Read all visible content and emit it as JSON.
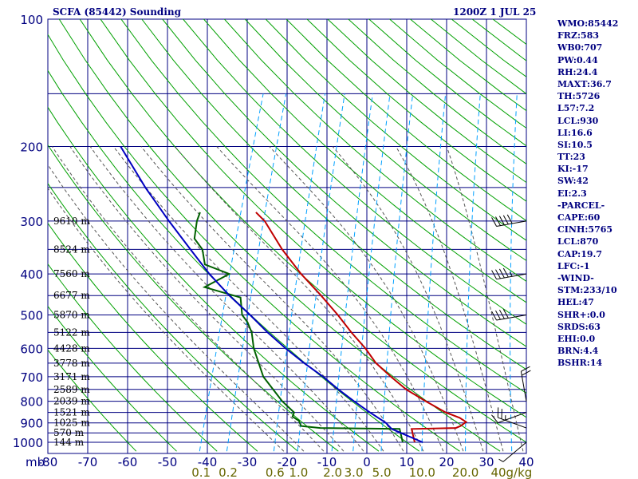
{
  "header": {
    "station_title": "SCFA (85442) Sounding",
    "valid_time": "1200Z  1 JUL 25"
  },
  "indices": [
    "WMO:85442",
    "FRZ:583",
    "WB0:707",
    "PW:0.44",
    "RH:24.4",
    "MAXT:36.7",
    "TH:5726",
    "L57:7.2",
    "LCL:930",
    "LI:16.6",
    "SI:10.5",
    "TT:23",
    "KI:-17",
    "SW:42",
    "EI:2.3",
    "-PARCEL-",
    "CAPE:60",
    "CINH:5765",
    "LCL:870",
    "CAP:19.7",
    "LFC:-1",
    "-WIND-",
    "STM:233/10",
    "HEL:47",
    "SHR+:0.0",
    "SRDS:63",
    "EHI:0.0",
    "BRN:4.4",
    "BSHR:14"
  ],
  "colors": {
    "grid": "#000080",
    "labels": "#000080",
    "dry_adiabats": "#00a000",
    "moist_adiabats": "#555555",
    "mixing_ratio": "#00a0ff",
    "temperature": "#c00000",
    "dewpoint": "#006000",
    "parcel": "#0000c0",
    "mixing_labels": "#666600",
    "wind": "#000000"
  },
  "chart_data": {
    "type": "skew-t log-p",
    "ylabel": "mb",
    "pressure_ticks": [
      "100",
      "200",
      "300",
      "400",
      "500",
      "600",
      "700",
      "800",
      "900",
      "1000"
    ],
    "pressure_values": [
      100,
      200,
      300,
      400,
      500,
      600,
      700,
      800,
      900,
      1000
    ],
    "temperature_ticks": [
      "-80",
      "-70",
      "-60",
      "-50",
      "-40",
      "-30",
      "-20",
      "-10",
      "0",
      "10",
      "20",
      "30",
      "40"
    ],
    "temperature_values": [
      -80,
      -70,
      -60,
      -50,
      -40,
      -30,
      -20,
      -10,
      0,
      10,
      20,
      30,
      40
    ],
    "mixing_ratio_labels": [
      "0.1",
      "0.2",
      "0.6",
      "1.0",
      "2.0",
      "3.0",
      "5.0",
      "10.0",
      "20.0",
      "40g/kg"
    ],
    "mixing_ratio_values": [
      0.1,
      0.2,
      0.6,
      1.0,
      2.0,
      3.0,
      5.0,
      10.0,
      20.0,
      40.0
    ],
    "height_labels": [
      {
        "p": 300,
        "label": "9610 m"
      },
      {
        "p": 350,
        "label": "8524 m"
      },
      {
        "p": 400,
        "label": "7560 m"
      },
      {
        "p": 450,
        "label": "6677 m"
      },
      {
        "p": 500,
        "label": "5870 m"
      },
      {
        "p": 550,
        "label": "5122 m"
      },
      {
        "p": 600,
        "label": "4428 m"
      },
      {
        "p": 650,
        "label": "3778 m"
      },
      {
        "p": 700,
        "label": "3171 m"
      },
      {
        "p": 750,
        "label": "2589 m"
      },
      {
        "p": 800,
        "label": "2039 m"
      },
      {
        "p": 850,
        "label": "1521 m"
      },
      {
        "p": 900,
        "label": "1025 m"
      },
      {
        "p": 950,
        "label": "570 m"
      },
      {
        "p": 1000,
        "label": "144 m"
      }
    ],
    "series": [
      {
        "key": "temperature",
        "points": [
          [
            1000,
            12
          ],
          [
            930,
            10
          ],
          [
            925,
            21
          ],
          [
            915,
            22
          ],
          [
            895,
            23
          ],
          [
            875,
            21
          ],
          [
            850,
            17
          ],
          [
            800,
            11
          ],
          [
            750,
            5
          ],
          [
            700,
            0
          ],
          [
            650,
            -5
          ],
          [
            600,
            -9
          ],
          [
            550,
            -14
          ],
          [
            500,
            -19
          ],
          [
            450,
            -25
          ],
          [
            400,
            -32
          ],
          [
            350,
            -39
          ],
          [
            300,
            -46
          ],
          [
            286,
            -49
          ]
        ]
      },
      {
        "key": "dewpoint",
        "points": [
          [
            1000,
            9
          ],
          [
            930,
            7
          ],
          [
            925,
            -13
          ],
          [
            915,
            -18
          ],
          [
            890,
            -19
          ],
          [
            870,
            -21
          ],
          [
            850,
            -21
          ],
          [
            800,
            -25
          ],
          [
            700,
            -32
          ],
          [
            600,
            -37
          ],
          [
            550,
            -39
          ],
          [
            520,
            -41
          ],
          [
            500,
            -43
          ],
          [
            455,
            -45
          ],
          [
            430,
            -55
          ],
          [
            400,
            -50
          ],
          [
            380,
            -57
          ],
          [
            350,
            -59
          ],
          [
            330,
            -62
          ],
          [
            300,
            -63
          ],
          [
            286,
            -63
          ]
        ]
      },
      {
        "key": "parcel",
        "points": [
          [
            1000,
            14
          ],
          [
            930,
            5
          ],
          [
            900,
            3
          ],
          [
            850,
            -2
          ],
          [
            800,
            -7
          ],
          [
            750,
            -12
          ],
          [
            700,
            -17
          ],
          [
            650,
            -23
          ],
          [
            600,
            -29
          ],
          [
            550,
            -35
          ],
          [
            500,
            -41
          ],
          [
            450,
            -48
          ],
          [
            400,
            -55
          ],
          [
            350,
            -62
          ],
          [
            300,
            -70
          ],
          [
            250,
            -79
          ],
          [
            200,
            -89
          ]
        ]
      }
    ],
    "winds": [
      {
        "p": 1000,
        "dir": 230,
        "spd": 5
      },
      {
        "p": 925,
        "dir": 290,
        "spd": 25
      },
      {
        "p": 850,
        "dir": 250,
        "spd": 10
      },
      {
        "p": 800,
        "dir": 350,
        "spd": 20
      },
      {
        "p": 500,
        "dir": 260,
        "spd": 40
      },
      {
        "p": 400,
        "dir": 260,
        "spd": 45
      },
      {
        "p": 300,
        "dir": 260,
        "spd": 50
      }
    ]
  }
}
